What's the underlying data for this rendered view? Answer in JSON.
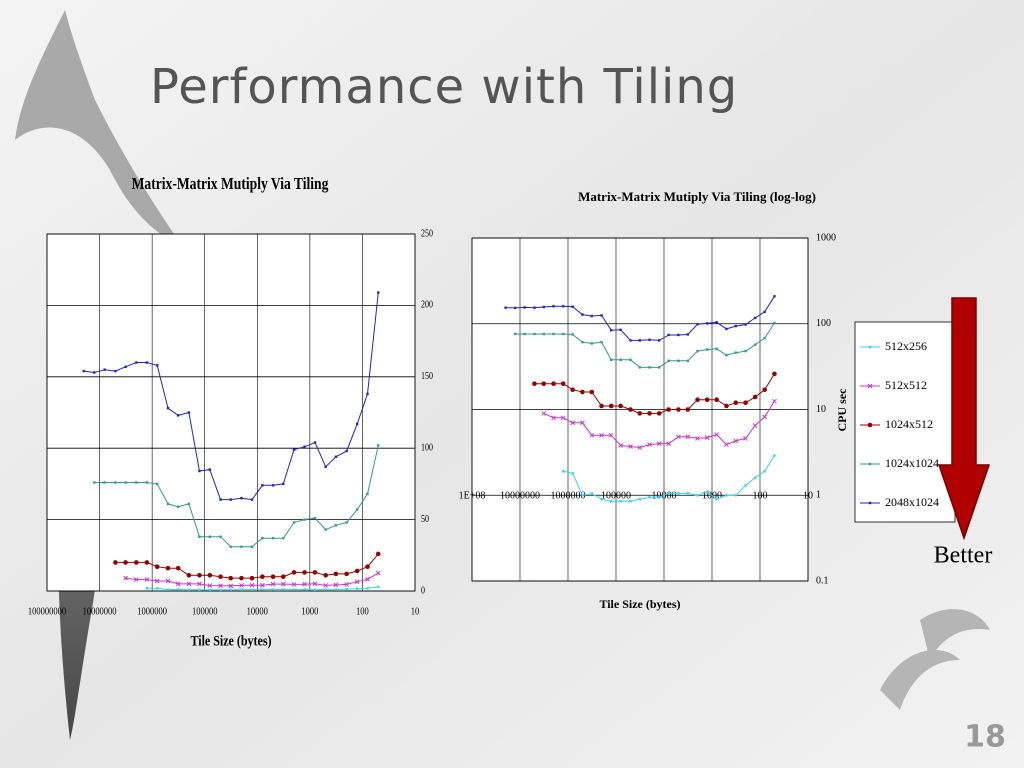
{
  "title": "Performance with Tiling",
  "annotation": "Better",
  "page_number": 18,
  "chart_data": [
    {
      "type": "line",
      "title": "Matrix-Matrix Mutiply Via Tiling",
      "xlabel": "Tile Size (bytes)",
      "xlog": true,
      "grid": true,
      "x": [
        20000000,
        12600000,
        8000000,
        5000000,
        3200000,
        2000000,
        1260000,
        800000,
        500000,
        320000,
        200000,
        126000,
        80000,
        50000,
        32000,
        20000,
        12600,
        8000,
        5000,
        3200,
        2000,
        1260,
        800,
        500,
        320,
        200,
        126,
        80,
        50
      ],
      "xlim": [
        100000000,
        10
      ],
      "xticks": [
        100000000,
        10000000,
        1000000,
        100000,
        10000,
        1000,
        100,
        10
      ],
      "ylim": [
        0,
        250
      ],
      "yticks": [
        0,
        50,
        100,
        150,
        200,
        250
      ],
      "series": [
        {
          "name": "512x256",
          "color": "#33d6ee",
          "values": [
            null,
            null,
            null,
            null,
            null,
            null,
            1.9,
            1.8,
            1,
            1.05,
            0.9,
            0.85,
            0.85,
            0.85,
            0.9,
            0.95,
            0.95,
            1.05,
            1.05,
            1.05,
            1,
            1.1,
            0.9,
            1,
            1,
            1.3,
            1.6,
            1.9,
            2.9
          ]
        },
        {
          "name": "512x512",
          "color": "#cc33cc",
          "values": [
            null,
            null,
            null,
            null,
            9,
            8,
            8,
            7,
            7,
            5,
            5,
            5,
            3.8,
            3.7,
            3.6,
            3.9,
            4,
            4,
            4.8,
            4.8,
            4.6,
            4.7,
            5.1,
            3.9,
            4.3,
            4.6,
            6.5,
            8.2,
            12.5
          ]
        },
        {
          "name": "1024x512",
          "color": "#990000",
          "values": [
            null,
            null,
            null,
            20,
            20,
            20,
            20,
            17,
            16,
            16,
            11,
            11,
            11,
            10,
            9,
            9,
            9,
            10,
            10,
            10,
            13,
            13,
            13,
            11,
            12,
            12,
            14,
            17,
            26
          ]
        },
        {
          "name": "1024x1024",
          "color": "#339999",
          "values": [
            null,
            76,
            76,
            76,
            76,
            76,
            76,
            75,
            61,
            59,
            61,
            38,
            38,
            38,
            31,
            31,
            31,
            37,
            37,
            37,
            48,
            50,
            51,
            43,
            46,
            48,
            57,
            68,
            102
          ]
        },
        {
          "name": "2048x1024",
          "color": "#2222cc",
          "values": [
            154,
            153,
            155,
            154,
            157,
            160,
            160,
            158,
            128,
            123,
            125,
            84,
            85,
            64,
            64,
            65,
            64,
            74,
            74,
            75,
            99,
            101,
            104,
            87,
            94,
            98,
            117,
            138,
            209
          ]
        }
      ]
    },
    {
      "type": "line",
      "title": "Matrix-Matrix Mutiply Via Tiling (log-log)",
      "xlabel": "Tile Size (bytes)",
      "ylabel": "CPU sec",
      "xlog": true,
      "ylog": true,
      "grid": true,
      "legend": "right",
      "x": [
        20000000,
        12600000,
        8000000,
        5000000,
        3200000,
        2000000,
        1260000,
        800000,
        500000,
        320000,
        200000,
        126000,
        80000,
        50000,
        32000,
        20000,
        12600,
        8000,
        5000,
        3200,
        2000,
        1260,
        800,
        500,
        320,
        200,
        126,
        80,
        50
      ],
      "xlim": [
        100000000,
        10
      ],
      "xticks": [
        {
          "value": 100000000,
          "label": "1E+08"
        },
        10000000,
        1000000,
        100000,
        10000,
        1000,
        100,
        10
      ],
      "ylim": [
        0.1,
        1000
      ],
      "yticks": [
        0.1,
        1,
        10,
        100,
        1000
      ],
      "series": [
        {
          "name": "512x256",
          "color": "#33d6ee",
          "values": [
            null,
            null,
            null,
            null,
            null,
            null,
            1.9,
            1.8,
            1,
            1.05,
            0.9,
            0.85,
            0.85,
            0.85,
            0.9,
            0.95,
            0.95,
            1.05,
            1.05,
            1.05,
            1,
            1.1,
            0.9,
            1,
            1,
            1.3,
            1.6,
            1.9,
            2.9
          ]
        },
        {
          "name": "512x512",
          "color": "#cc33cc",
          "values": [
            null,
            null,
            null,
            null,
            9,
            8,
            8,
            7,
            7,
            5,
            5,
            5,
            3.8,
            3.7,
            3.6,
            3.9,
            4,
            4,
            4.8,
            4.8,
            4.6,
            4.7,
            5.1,
            3.9,
            4.3,
            4.6,
            6.5,
            8.2,
            12.5
          ]
        },
        {
          "name": "1024x512",
          "color": "#990000",
          "values": [
            null,
            null,
            null,
            20,
            20,
            20,
            20,
            17,
            16,
            16,
            11,
            11,
            11,
            10,
            9,
            9,
            9,
            10,
            10,
            10,
            13,
            13,
            13,
            11,
            12,
            12,
            14,
            17,
            26
          ]
        },
        {
          "name": "1024x1024",
          "color": "#339999",
          "values": [
            null,
            76,
            76,
            76,
            76,
            76,
            76,
            75,
            61,
            59,
            61,
            38,
            38,
            38,
            31,
            31,
            31,
            37,
            37,
            37,
            48,
            50,
            51,
            43,
            46,
            48,
            57,
            68,
            102
          ]
        },
        {
          "name": "2048x1024",
          "color": "#2222cc",
          "values": [
            154,
            153,
            155,
            154,
            157,
            160,
            160,
            158,
            128,
            123,
            125,
            84,
            85,
            64,
            64,
            65,
            64,
            74,
            74,
            75,
            99,
            101,
            104,
            87,
            94,
            98,
            117,
            138,
            209
          ]
        }
      ]
    }
  ]
}
